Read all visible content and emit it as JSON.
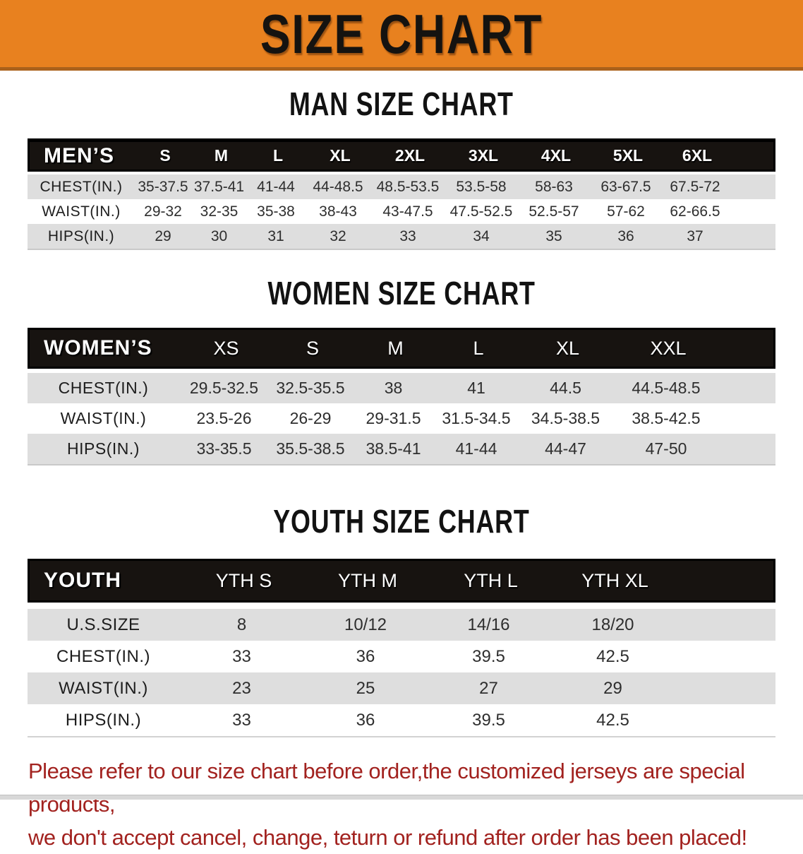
{
  "banner": {
    "title": "SIZE CHART"
  },
  "theme": {
    "banner-bg": "#e8811f",
    "banner-edge": "#aa611b",
    "bar-bg": "#171310",
    "row-gray": "#dedede",
    "footer-red": "#a2221f"
  },
  "chart_data": [
    {
      "type": "table",
      "title": "MAN SIZE CHART",
      "columns": [
        "MEN’S",
        "S",
        "M",
        "L",
        "XL",
        "2XL",
        "3XL",
        "4XL",
        "5XL",
        "6XL"
      ],
      "rows": [
        {
          "label": "CHEST(IN.)",
          "values": [
            "35-37.5",
            "37.5-41",
            "41-44",
            "44-48.5",
            "48.5-53.5",
            "53.5-58",
            "58-63",
            "63-67.5",
            "67.5-72"
          ]
        },
        {
          "label": "WAIST(IN.)",
          "values": [
            "29-32",
            "32-35",
            "35-38",
            "38-43",
            "43-47.5",
            "47.5-52.5",
            "52.5-57",
            "57-62",
            "62-66.5"
          ]
        },
        {
          "label": "HIPS(IN.)",
          "values": [
            "29",
            "30",
            "31",
            "32",
            "33",
            "34",
            "35",
            "36",
            "37"
          ]
        }
      ]
    },
    {
      "type": "table",
      "title": "WOMEN SIZE CHART",
      "columns": [
        "WOMEN’S",
        "XS",
        "S",
        "M",
        "L",
        "XL",
        "XXL"
      ],
      "rows": [
        {
          "label": "CHEST(IN.)",
          "values": [
            "29.5-32.5",
            "32.5-35.5",
            "38",
            "41",
            "44.5",
            "44.5-48.5"
          ]
        },
        {
          "label": "WAIST(IN.)",
          "values": [
            "23.5-26",
            "26-29",
            "29-31.5",
            "31.5-34.5",
            "34.5-38.5",
            "38.5-42.5"
          ]
        },
        {
          "label": "HIPS(IN.)",
          "values": [
            "33-35.5",
            "35.5-38.5",
            "38.5-41",
            "41-44",
            "44-47",
            "47-50"
          ]
        }
      ]
    },
    {
      "type": "table",
      "title": "YOUTH SIZE CHART",
      "columns": [
        "YOUTH",
        "YTH S",
        "YTH M",
        "YTH L",
        "YTH XL"
      ],
      "rows": [
        {
          "label": "U.S.SIZE",
          "values": [
            "8",
            "10/12",
            "14/16",
            "18/20"
          ]
        },
        {
          "label": "CHEST(IN.)",
          "values": [
            "33",
            "36",
            "39.5",
            "42.5"
          ]
        },
        {
          "label": "WAIST(IN.)",
          "values": [
            "23",
            "25",
            "27",
            "29"
          ]
        },
        {
          "label": "HIPS(IN.)",
          "values": [
            "33",
            "36",
            "39.5",
            "42.5"
          ]
        }
      ]
    }
  ],
  "footer": {
    "line1": "Please refer to our size chart before order,the customized jerseys are special products,",
    "line2": "we don't accept cancel, change, teturn or refund after order has been placed!"
  }
}
